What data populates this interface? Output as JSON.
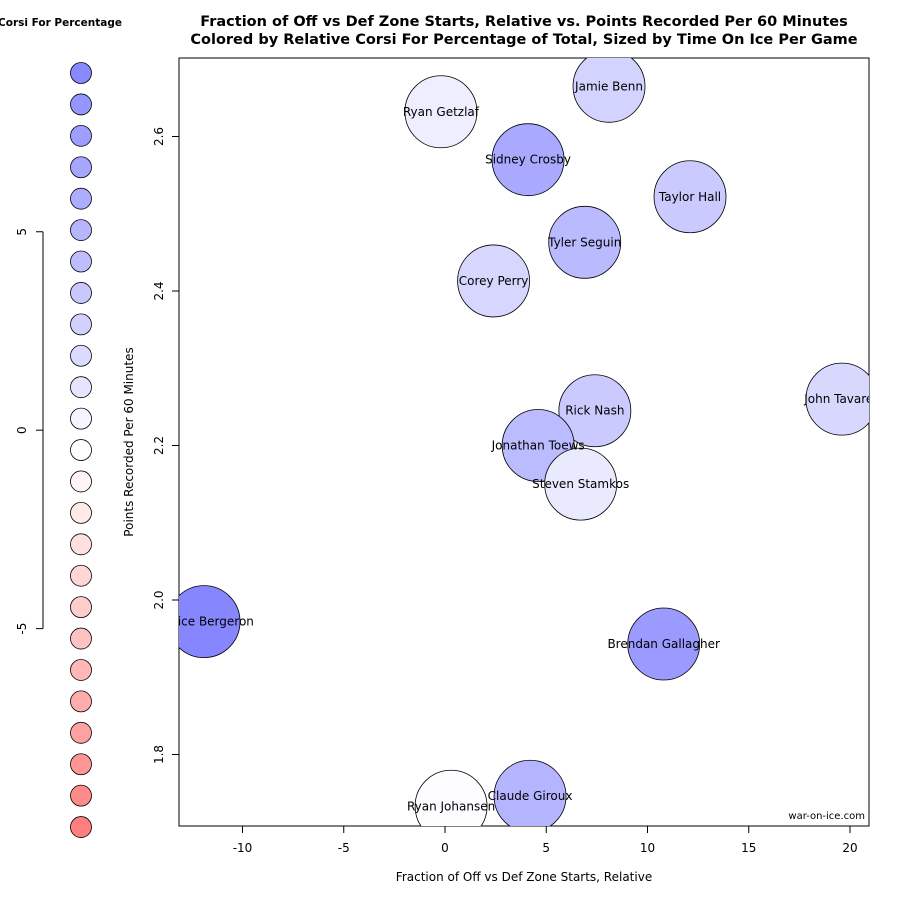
{
  "chart_data": {
    "type": "scatter",
    "title": "Fraction of Off vs Def Zone Starts, Relative vs. Points Recorded Per 60 Minutes",
    "subtitle": "Colored by Relative Corsi For Percentage of Total, Sized by Time On Ice Per Game",
    "xlabel": "Fraction of Off vs Def Zone Starts, Relative",
    "ylabel": "Points Recorded Per 60 Minutes",
    "xlim": [
      -13,
      21
    ],
    "ylim": [
      1.7,
      2.71
    ],
    "x_ticks": [
      -10,
      -5,
      0,
      5,
      10,
      15,
      20
    ],
    "y_ticks": [
      1.8,
      2.0,
      2.2,
      2.4,
      2.6
    ],
    "grid": false,
    "credit": "war-on-ice.com",
    "points": [
      {
        "name": "Jamie Benn",
        "x": 8.1,
        "y": 2.665,
        "color": "#d3d3ff"
      },
      {
        "name": "Ryan Getzlaf",
        "x": -0.2,
        "y": 2.632,
        "color": "#eeeeff"
      },
      {
        "name": "Sidney Crosby",
        "x": 4.1,
        "y": 2.57,
        "color": "#a9a9ff"
      },
      {
        "name": "Taylor Hall",
        "x": 12.1,
        "y": 2.522,
        "color": "#cacaff"
      },
      {
        "name": "Tyler Seguin",
        "x": 6.9,
        "y": 2.463,
        "color": "#babaff"
      },
      {
        "name": "Corey Perry",
        "x": 2.4,
        "y": 2.413,
        "color": "#d6d6ff"
      },
      {
        "name": "John Tavares",
        "x": 19.6,
        "y": 2.26,
        "color": "#d8d8ff"
      },
      {
        "name": "Rick Nash",
        "x": 7.4,
        "y": 2.245,
        "color": "#cacaff"
      },
      {
        "name": "Jonathan Toews",
        "x": 4.6,
        "y": 2.2,
        "color": "#bbbbff"
      },
      {
        "name": "Steven Stamkos",
        "x": 6.7,
        "y": 2.15,
        "color": "#eaeaff"
      },
      {
        "name": "Patrice Bergeron",
        "x": -11.9,
        "y": 1.972,
        "color": "#8686ff"
      },
      {
        "name": "Brendan Gallagher",
        "x": 10.8,
        "y": 1.943,
        "color": "#9a9aff"
      },
      {
        "name": "Claude Giroux",
        "x": 4.2,
        "y": 1.746,
        "color": "#b4b4ff"
      },
      {
        "name": "Ryan Johansen",
        "x": 0.3,
        "y": 1.733,
        "color": "#fdfdff"
      }
    ],
    "legend": {
      "title": "Relative Corsi For Percentage",
      "ticks": [
        5,
        0,
        -5
      ],
      "range": [
        -10,
        9
      ],
      "colors": [
        "#8888ff",
        "#9595ff",
        "#9e9eff",
        "#a6a6ff",
        "#adadff",
        "#b6b6ff",
        "#bebeff",
        "#c8c8ff",
        "#d1d1ff",
        "#dbdbff",
        "#e5e5ff",
        "#f5f5ff",
        "#ffffff",
        "#fff5f5",
        "#ffeaea",
        "#ffe0e0",
        "#ffd6d6",
        "#ffcccc",
        "#ffc2c2",
        "#ffb7b7",
        "#ffacac",
        "#ffa1a1",
        "#ff9595",
        "#ff8a8a",
        "#ff7f7f"
      ]
    }
  }
}
